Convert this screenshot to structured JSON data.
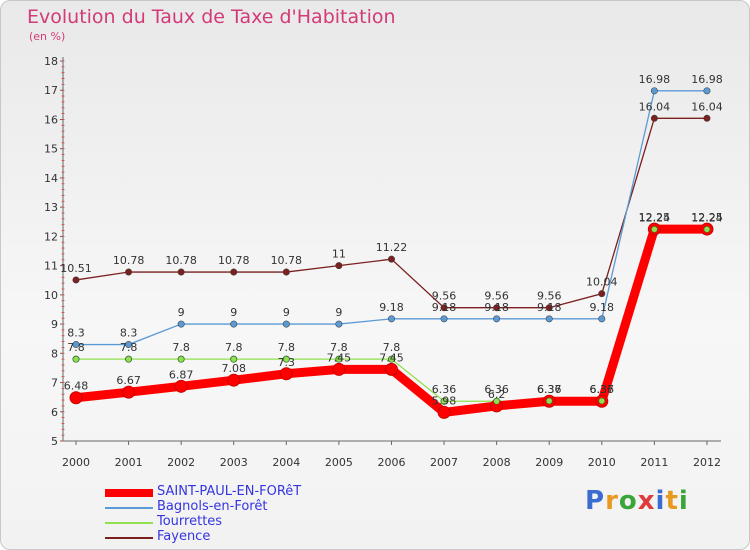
{
  "chart_data": {
    "type": "line",
    "title": "Evolution du Taux de Taxe d'Habitation",
    "subtitle": "(en %)",
    "x": [
      "2000",
      "2001",
      "2002",
      "2003",
      "2004",
      "2005",
      "2006",
      "2007",
      "2008",
      "2009",
      "2010",
      "2011",
      "2012"
    ],
    "ylim": [
      5,
      18
    ],
    "yticks": [
      5,
      6,
      7,
      8,
      9,
      10,
      11,
      12,
      13,
      14,
      15,
      16,
      17,
      18
    ],
    "grid": false,
    "legend_position": "bottom-left",
    "series": [
      {
        "name": "SAINT-PAUL-EN-FORêT",
        "color": "#ff0000",
        "values": [
          6.48,
          6.67,
          6.87,
          7.08,
          7.3,
          7.45,
          7.45,
          5.98,
          6.2,
          6.36,
          6.36,
          12.25,
          12.25
        ]
      },
      {
        "name": "Bagnols-en-Forêt",
        "color": "#5b9bd5",
        "values": [
          8.3,
          8.3,
          9,
          9,
          9,
          9,
          9.18,
          9.18,
          9.18,
          9.18,
          9.18,
          16.98,
          16.98
        ]
      },
      {
        "name": "Tourrettes",
        "color": "#90e050",
        "values": [
          7.8,
          7.8,
          7.8,
          7.8,
          7.8,
          7.8,
          7.8,
          6.36,
          6.36,
          6.37,
          6.37,
          12.24,
          12.24
        ]
      },
      {
        "name": "Fayence",
        "color": "#7b1f1f",
        "values": [
          10.51,
          10.78,
          10.78,
          10.78,
          10.78,
          11,
          11.22,
          9.56,
          9.56,
          9.56,
          10.04,
          16.04,
          16.04
        ]
      }
    ]
  },
  "brand": {
    "letters": [
      "P",
      "r",
      "o",
      "x",
      "i",
      "t",
      "i"
    ],
    "colors": [
      "#3b6ccf",
      "#e89a20",
      "#3aa53a",
      "#e03b3b",
      "#3b6ccf",
      "#e89a20",
      "#3aa53a"
    ]
  }
}
